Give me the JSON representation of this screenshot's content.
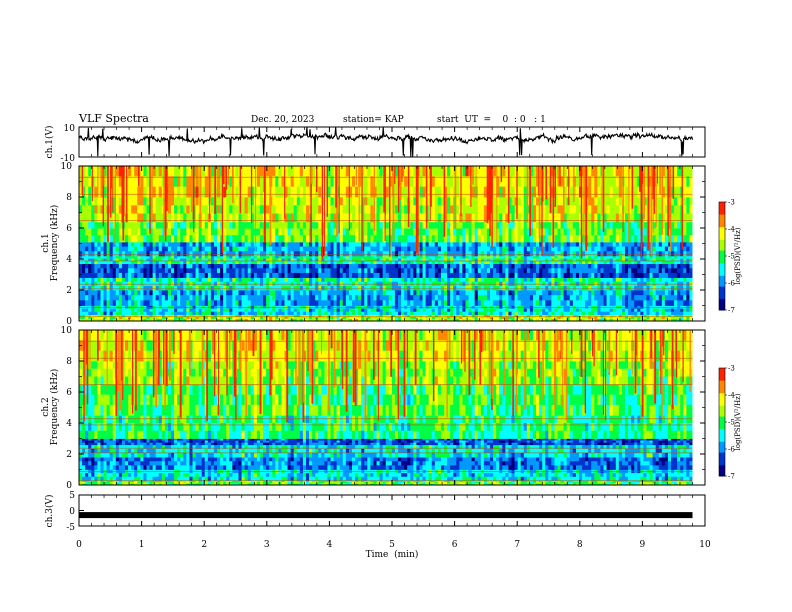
{
  "header": {
    "title": "VLF Spectra",
    "date": "Dec. 20, 2023",
    "station": "station= KAP",
    "start_ut": "start  UT  =    0  : 0   : 1"
  },
  "colors": {
    "colormap": [
      "#000080",
      "#0033cc",
      "#0099ff",
      "#00ffff",
      "#00ff44",
      "#aaff00",
      "#ffff00",
      "#ff8800",
      "#ff2200",
      "#ffffff"
    ],
    "trace": "#000000"
  },
  "chart_data": [
    {
      "type": "line",
      "name": "ch1-voltage",
      "ylabel": "ch.1(V)",
      "ylim": [
        -10,
        10
      ],
      "yticks": [
        "10",
        "-10"
      ],
      "xlim": [
        0,
        10
      ],
      "x_start": 0,
      "x_end": 9.8,
      "baseline": 2.5,
      "amplitude": 4
    },
    {
      "type": "heatmap",
      "name": "ch1-spectrogram",
      "ylabel": "ch.1  Frequency  (kHz)",
      "ylabel_ch": "ch.1",
      "ylabel_freq": "Frequency  (kHz)",
      "ylim": [
        0,
        10
      ],
      "yticks": [
        "0",
        "2",
        "4",
        "6",
        "8",
        "10"
      ],
      "xlim": [
        0,
        10
      ],
      "x_end": 9.8,
      "freq_bands_khz": [
        {
          "from": 0,
          "to": 0.4,
          "level": -4.5
        },
        {
          "from": 0.4,
          "to": 1.0,
          "level": -5.5
        },
        {
          "from": 1.0,
          "to": 2.0,
          "level": -5.8
        },
        {
          "from": 2.0,
          "to": 2.8,
          "level": -5.3
        },
        {
          "from": 2.8,
          "to": 3.7,
          "level": -6.2
        },
        {
          "from": 3.7,
          "to": 4.2,
          "level": -5.2
        },
        {
          "from": 4.2,
          "to": 5.1,
          "level": -5.8
        },
        {
          "from": 5.1,
          "to": 6.4,
          "level": -4.8
        },
        {
          "from": 6.4,
          "to": 8.0,
          "level": -4.4
        },
        {
          "from": 8.0,
          "to": 10.0,
          "level": -4.2
        }
      ],
      "colorbar": {
        "label": "log(PSD)(V²/Hz)",
        "ticks": [
          "-3",
          "-4",
          "-5",
          "-6",
          "-7"
        ],
        "range": [
          -7,
          -3
        ]
      }
    },
    {
      "type": "heatmap",
      "name": "ch2-spectrogram",
      "ylabel": "ch.2  Frequency  (kHz)",
      "ylabel_ch": "ch.2",
      "ylabel_freq": "Frequency  (kHz)",
      "ylim": [
        0,
        10
      ],
      "yticks": [
        "0",
        "2",
        "4",
        "6",
        "8",
        "10"
      ],
      "xlim": [
        0,
        10
      ],
      "x_end": 9.8,
      "freq_bands_khz": [
        {
          "from": 0,
          "to": 0.3,
          "level": -4.8
        },
        {
          "from": 0.3,
          "to": 1.0,
          "level": -5.5
        },
        {
          "from": 1.0,
          "to": 1.8,
          "level": -6.0
        },
        {
          "from": 1.8,
          "to": 2.6,
          "level": -5.5
        },
        {
          "from": 2.6,
          "to": 3.0,
          "level": -6.2
        },
        {
          "from": 3.0,
          "to": 4.5,
          "level": -5.1
        },
        {
          "from": 4.5,
          "to": 6.5,
          "level": -4.9
        },
        {
          "from": 6.5,
          "to": 8.0,
          "level": -4.6
        },
        {
          "from": 8.0,
          "to": 10.0,
          "level": -4.3
        }
      ],
      "colorbar": {
        "label": "log(PSD)(V²/Hz)",
        "ticks": [
          "-3",
          "-4",
          "-5",
          "-6",
          "-7"
        ],
        "range": [
          -7,
          -3
        ]
      }
    },
    {
      "type": "line",
      "name": "ch3-voltage",
      "ylabel": "ch.3(V)",
      "ylim": [
        -5,
        5
      ],
      "yticks": [
        "5",
        "0",
        "-5"
      ],
      "xlim": [
        0,
        10
      ],
      "x_end": 9.8,
      "value": -1.5
    }
  ],
  "xaxis": {
    "label": "Time  (min)",
    "ticks": [
      "0",
      "1",
      "2",
      "3",
      "4",
      "5",
      "6",
      "7",
      "8",
      "9",
      "10"
    ]
  }
}
